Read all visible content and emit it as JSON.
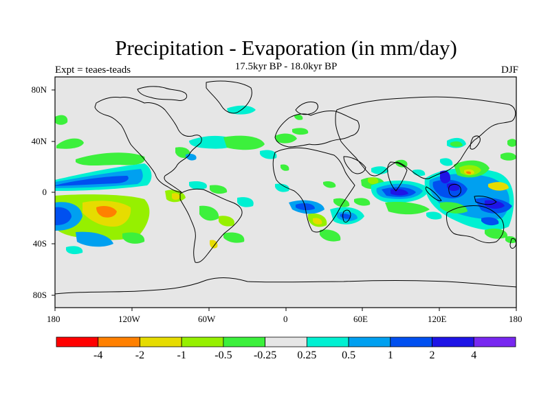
{
  "title": "Precipitation - Evaporation (in mm/day)",
  "subtitle": "17.5kyr BP - 18.0kyr BP",
  "experiment_label": "Expt = teaes-teads",
  "season": "DJF",
  "map": {
    "x_ticks": [
      "180",
      "120W",
      "60W",
      "0",
      "60E",
      "120E",
      "180"
    ],
    "y_ticks": [
      "80N",
      "40N",
      "0",
      "40S",
      "80S"
    ],
    "background_color": "#e6e6e6"
  },
  "colorbar": {
    "colors": [
      "#ff0000",
      "#ff8000",
      "#e6dc00",
      "#96f000",
      "#3cf03c",
      "#e6e6e6",
      "#00f0d2",
      "#00a0f0",
      "#0050f0",
      "#1e14e6",
      "#7828f0"
    ],
    "labels": [
      "-4",
      "-2",
      "-1",
      "-0.5",
      "-0.25",
      "0.25",
      "0.5",
      "1",
      "2",
      "4"
    ]
  }
}
